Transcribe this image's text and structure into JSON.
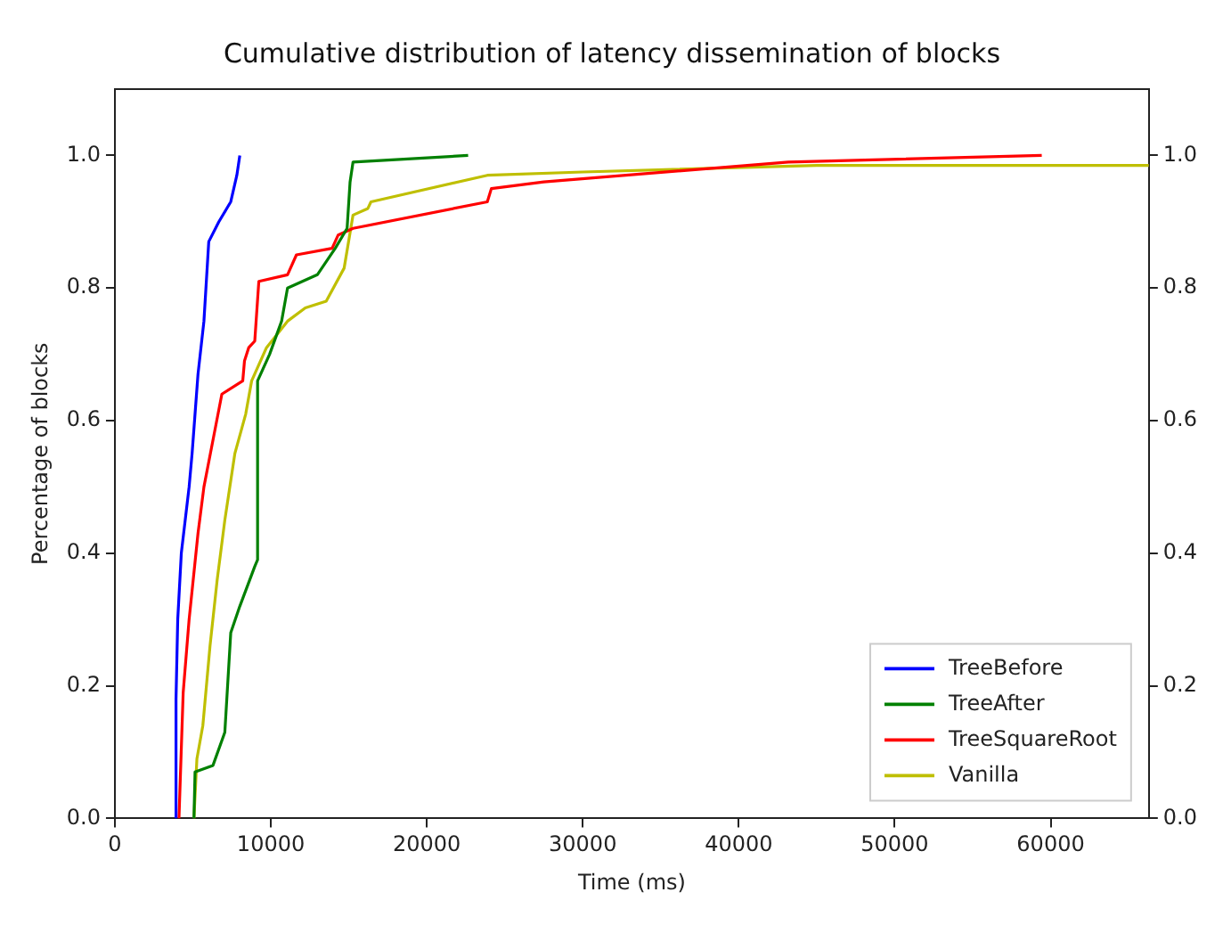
{
  "chart_data": {
    "type": "line",
    "title": "Cumulative distribution of latency dissemination of blocks",
    "xlabel": "Time (ms)",
    "ylabel": "Percentage of blocks",
    "xlim": [
      0,
      66300
    ],
    "xticks": [
      0,
      10000,
      20000,
      30000,
      40000,
      50000,
      60000
    ],
    "ylim": [
      0,
      1.1
    ],
    "yticks": [
      {
        "value": 0,
        "label": "0.0"
      },
      0.2,
      0.4,
      0.6,
      0.8,
      {
        "value": 1,
        "label": "1.0"
      }
    ],
    "y2lim": [
      0,
      1.1
    ],
    "y2ticks": [
      {
        "value": 0,
        "label": "0.0"
      },
      0.2,
      0.4,
      0.6,
      0.8,
      {
        "value": 1,
        "label": "1.0"
      }
    ],
    "grid": false,
    "legend": "bottom right",
    "marker": "none",
    "line_style": "solid",
    "series": [
      {
        "name": "TreeBefore",
        "color": "#0000ff",
        "x": [
          3920,
          3920,
          4030,
          4260,
          4760,
          4950,
          5330,
          5710,
          6020,
          6670,
          7430,
          7820,
          8010
        ],
        "values": [
          0,
          0.18,
          0.3,
          0.4,
          0.5,
          0.55,
          0.67,
          0.75,
          0.87,
          0.9,
          0.93,
          0.97,
          1.0
        ]
      },
      {
        "name": "TreeAfter",
        "color": "#008000",
        "x": [
          5070,
          5140,
          6290,
          7050,
          7430,
          8010,
          8970,
          9150,
          9150,
          9920,
          10690,
          11070,
          12980,
          14130,
          14890,
          15080,
          15270,
          22650
        ],
        "values": [
          0,
          0.07,
          0.08,
          0.13,
          0.28,
          0.32,
          0.38,
          0.39,
          0.66,
          0.7,
          0.75,
          0.8,
          0.82,
          0.86,
          0.89,
          0.96,
          0.99,
          1.0
        ]
      },
      {
        "name": "TreeSquareRoot",
        "color": "#ff0000",
        "x": [
          4110,
          4380,
          4760,
          5330,
          5710,
          6860,
          8200,
          8310,
          8580,
          8970,
          9230,
          11070,
          11640,
          13930,
          14320,
          15270,
          23880,
          24140,
          27500,
          43180,
          59430
        ],
        "values": [
          0,
          0.19,
          0.3,
          0.43,
          0.5,
          0.64,
          0.66,
          0.69,
          0.71,
          0.72,
          0.81,
          0.82,
          0.85,
          0.86,
          0.88,
          0.89,
          0.93,
          0.95,
          0.96,
          0.99,
          1.0
        ]
      },
      {
        "name": "Vanilla",
        "color": "#bfbf00",
        "x": [
          5070,
          5260,
          5640,
          6100,
          6560,
          7050,
          7690,
          8390,
          8770,
          9720,
          11070,
          12210,
          13550,
          14700,
          15270,
          16220,
          16420,
          23880,
          30000,
          45000,
          66300
        ],
        "values": [
          0,
          0.09,
          0.14,
          0.26,
          0.36,
          0.45,
          0.55,
          0.61,
          0.66,
          0.71,
          0.75,
          0.77,
          0.78,
          0.83,
          0.91,
          0.92,
          0.93,
          0.97,
          0.975,
          0.985,
          0.985
        ]
      }
    ]
  }
}
